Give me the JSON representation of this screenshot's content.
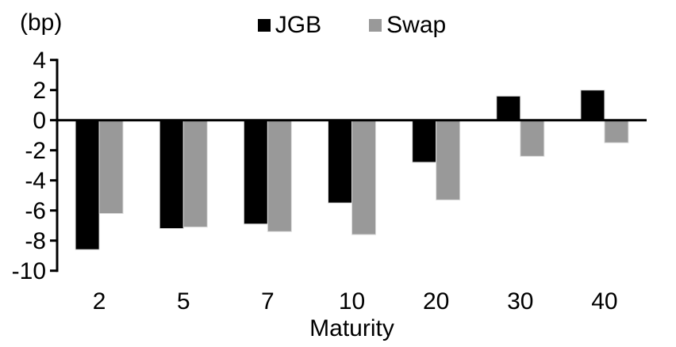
{
  "chart_data": {
    "type": "bar",
    "title": "",
    "unit_label": "(bp)",
    "xlabel": "Maturity",
    "ylabel": "",
    "categories": [
      "2",
      "5",
      "7",
      "10",
      "20",
      "30",
      "40"
    ],
    "series": [
      {
        "name": "JGB",
        "color": "#000000",
        "values": [
          -8.6,
          -7.2,
          -6.9,
          -5.5,
          -2.8,
          1.6,
          2.0
        ]
      },
      {
        "name": "Swap",
        "color": "#999999",
        "values": [
          -6.2,
          -7.1,
          -7.4,
          -7.6,
          -5.3,
          -2.4,
          -1.5
        ]
      }
    ],
    "ylim": [
      -10,
      4
    ],
    "yticks": [
      4,
      2,
      0,
      -2,
      -4,
      -6,
      -8,
      -10
    ],
    "grid": false,
    "legend_position": "top-center",
    "axis_color": "#000000",
    "background": "#ffffff",
    "bar_border_color": "#dcdcdc"
  }
}
